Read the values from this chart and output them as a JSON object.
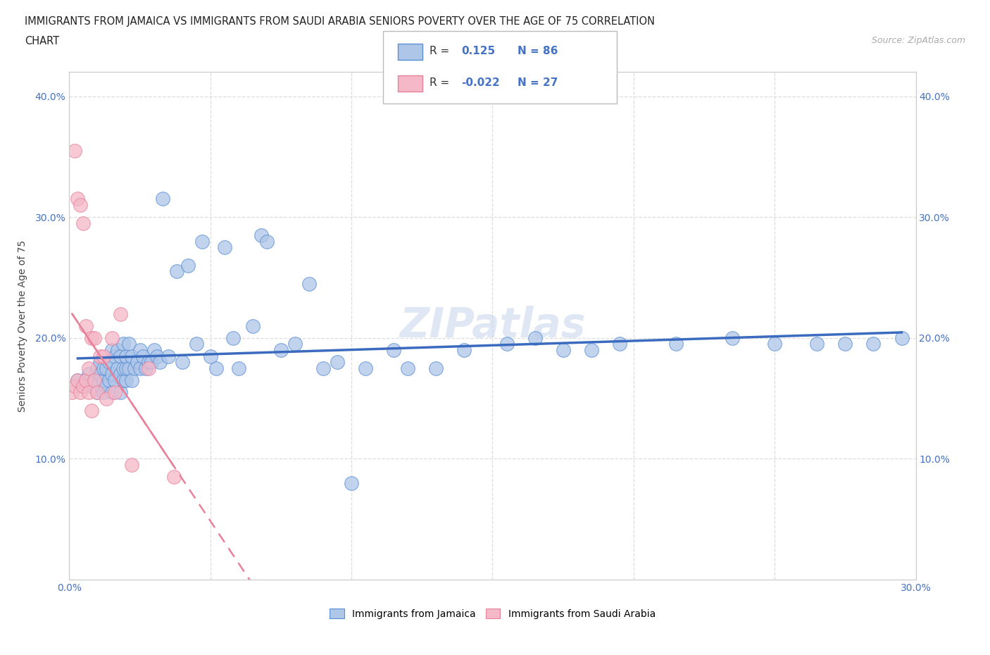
{
  "title_line1": "IMMIGRANTS FROM JAMAICA VS IMMIGRANTS FROM SAUDI ARABIA SENIORS POVERTY OVER THE AGE OF 75 CORRELATION",
  "title_line2": "CHART",
  "source_text": "Source: ZipAtlas.com",
  "ylabel": "Seniors Poverty Over the Age of 75",
  "xlim": [
    0.0,
    0.3
  ],
  "ylim": [
    0.0,
    0.42
  ],
  "xtick_pos": [
    0.0,
    0.05,
    0.1,
    0.15,
    0.2,
    0.25,
    0.3
  ],
  "xtick_labels": [
    "0.0%",
    "",
    "",
    "",
    "",
    "",
    "30.0%"
  ],
  "ytick_pos": [
    0.0,
    0.1,
    0.2,
    0.3,
    0.4
  ],
  "ytick_labels": [
    "",
    "10.0%",
    "20.0%",
    "30.0%",
    "40.0%"
  ],
  "jamaica_color": "#aec6e8",
  "saudi_color": "#f4b8c8",
  "jamaica_edge_color": "#5b8fd4",
  "saudi_edge_color": "#e8829a",
  "jamaica_line_color": "#3a6bbf",
  "saudi_line_color": "#e8829a",
  "legend_R_jamaica": "0.125",
  "legend_N_jamaica": "86",
  "legend_R_saudi": "-0.022",
  "legend_N_saudi": "27",
  "watermark": "ZIPatlas",
  "jamaica_x": [
    0.003,
    0.005,
    0.006,
    0.007,
    0.008,
    0.009,
    0.01,
    0.01,
    0.011,
    0.011,
    0.012,
    0.012,
    0.012,
    0.013,
    0.013,
    0.014,
    0.014,
    0.015,
    0.015,
    0.015,
    0.016,
    0.016,
    0.017,
    0.017,
    0.018,
    0.018,
    0.018,
    0.019,
    0.019,
    0.019,
    0.02,
    0.02,
    0.02,
    0.021,
    0.021,
    0.022,
    0.022,
    0.023,
    0.024,
    0.025,
    0.025,
    0.026,
    0.027,
    0.028,
    0.029,
    0.03,
    0.031,
    0.032,
    0.033,
    0.035,
    0.038,
    0.04,
    0.042,
    0.045,
    0.047,
    0.05,
    0.052,
    0.055,
    0.058,
    0.06,
    0.065,
    0.068,
    0.07,
    0.075,
    0.08,
    0.085,
    0.09,
    0.095,
    0.1,
    0.105,
    0.115,
    0.12,
    0.13,
    0.14,
    0.155,
    0.165,
    0.175,
    0.185,
    0.195,
    0.215,
    0.235,
    0.25,
    0.265,
    0.275,
    0.285,
    0.295
  ],
  "jamaica_y": [
    0.165,
    0.16,
    0.165,
    0.17,
    0.16,
    0.165,
    0.155,
    0.175,
    0.17,
    0.18,
    0.155,
    0.165,
    0.175,
    0.16,
    0.175,
    0.165,
    0.18,
    0.155,
    0.17,
    0.19,
    0.165,
    0.185,
    0.175,
    0.19,
    0.155,
    0.17,
    0.185,
    0.165,
    0.175,
    0.195,
    0.165,
    0.175,
    0.185,
    0.175,
    0.195,
    0.165,
    0.185,
    0.175,
    0.18,
    0.175,
    0.19,
    0.185,
    0.175,
    0.18,
    0.18,
    0.19,
    0.185,
    0.18,
    0.315,
    0.185,
    0.255,
    0.18,
    0.26,
    0.195,
    0.28,
    0.185,
    0.175,
    0.275,
    0.2,
    0.175,
    0.21,
    0.285,
    0.28,
    0.19,
    0.195,
    0.245,
    0.175,
    0.18,
    0.08,
    0.175,
    0.19,
    0.175,
    0.175,
    0.19,
    0.195,
    0.2,
    0.19,
    0.19,
    0.195,
    0.195,
    0.2,
    0.195,
    0.195,
    0.195,
    0.195,
    0.2
  ],
  "saudi_x": [
    0.001,
    0.002,
    0.002,
    0.003,
    0.003,
    0.004,
    0.004,
    0.005,
    0.005,
    0.006,
    0.006,
    0.007,
    0.007,
    0.008,
    0.008,
    0.009,
    0.009,
    0.01,
    0.011,
    0.012,
    0.013,
    0.015,
    0.016,
    0.018,
    0.022,
    0.028,
    0.037
  ],
  "saudi_y": [
    0.155,
    0.16,
    0.355,
    0.165,
    0.315,
    0.155,
    0.31,
    0.16,
    0.295,
    0.165,
    0.21,
    0.175,
    0.155,
    0.2,
    0.14,
    0.165,
    0.2,
    0.155,
    0.185,
    0.185,
    0.15,
    0.2,
    0.155,
    0.22,
    0.095,
    0.175,
    0.085
  ]
}
